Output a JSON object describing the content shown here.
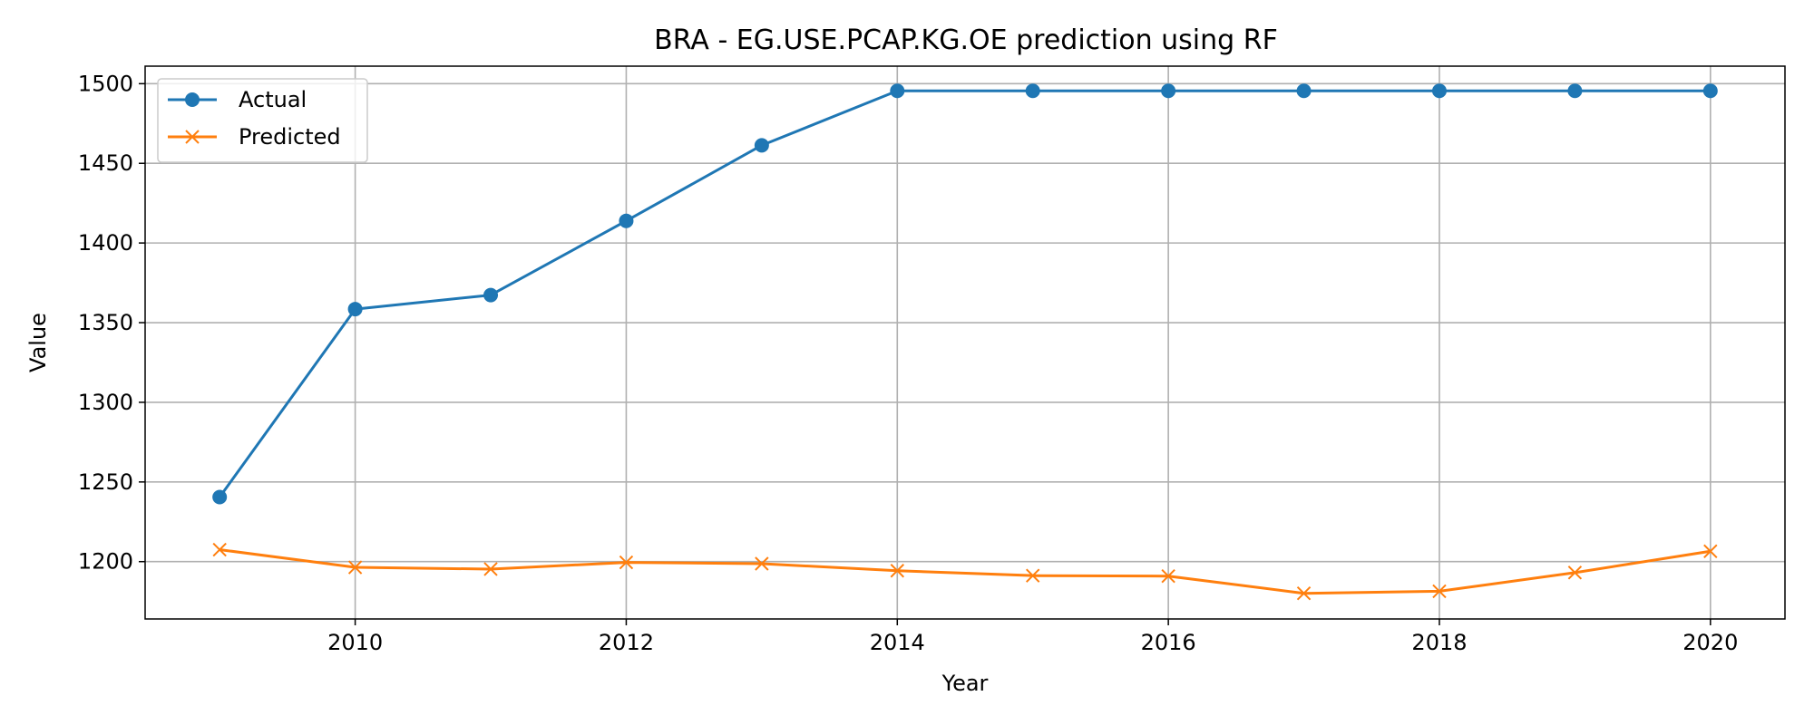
{
  "chart_data": {
    "type": "line",
    "title": "BRA - EG.USE.PCAP.KG.OE prediction using RF",
    "xlabel": "Year",
    "ylabel": "Value",
    "x": [
      2009,
      2010,
      2011,
      2012,
      2013,
      2014,
      2015,
      2016,
      2017,
      2018,
      2019,
      2020
    ],
    "xlim": [
      2008.45,
      2020.55
    ],
    "ylim": [
      1164,
      1511
    ],
    "xticks": [
      2010,
      2012,
      2014,
      2016,
      2018,
      2020
    ],
    "yticks": [
      1200,
      1250,
      1300,
      1350,
      1400,
      1450,
      1500
    ],
    "grid": true,
    "legend_position": "top-left",
    "series": [
      {
        "name": "Actual",
        "marker": "circle",
        "color": "#1f77b4",
        "values": [
          1240.5,
          1358.5,
          1367.3,
          1413.9,
          1461.3,
          1495.5,
          1495.5,
          1495.5,
          1495.5,
          1495.5,
          1495.5,
          1495.5
        ]
      },
      {
        "name": "Predicted",
        "marker": "x",
        "color": "#ff7f0e",
        "values": [
          1207.5,
          1196.4,
          1195.3,
          1199.5,
          1198.7,
          1194.3,
          1191.2,
          1190.9,
          1180.1,
          1181.4,
          1193.1,
          1206.5
        ]
      }
    ]
  }
}
